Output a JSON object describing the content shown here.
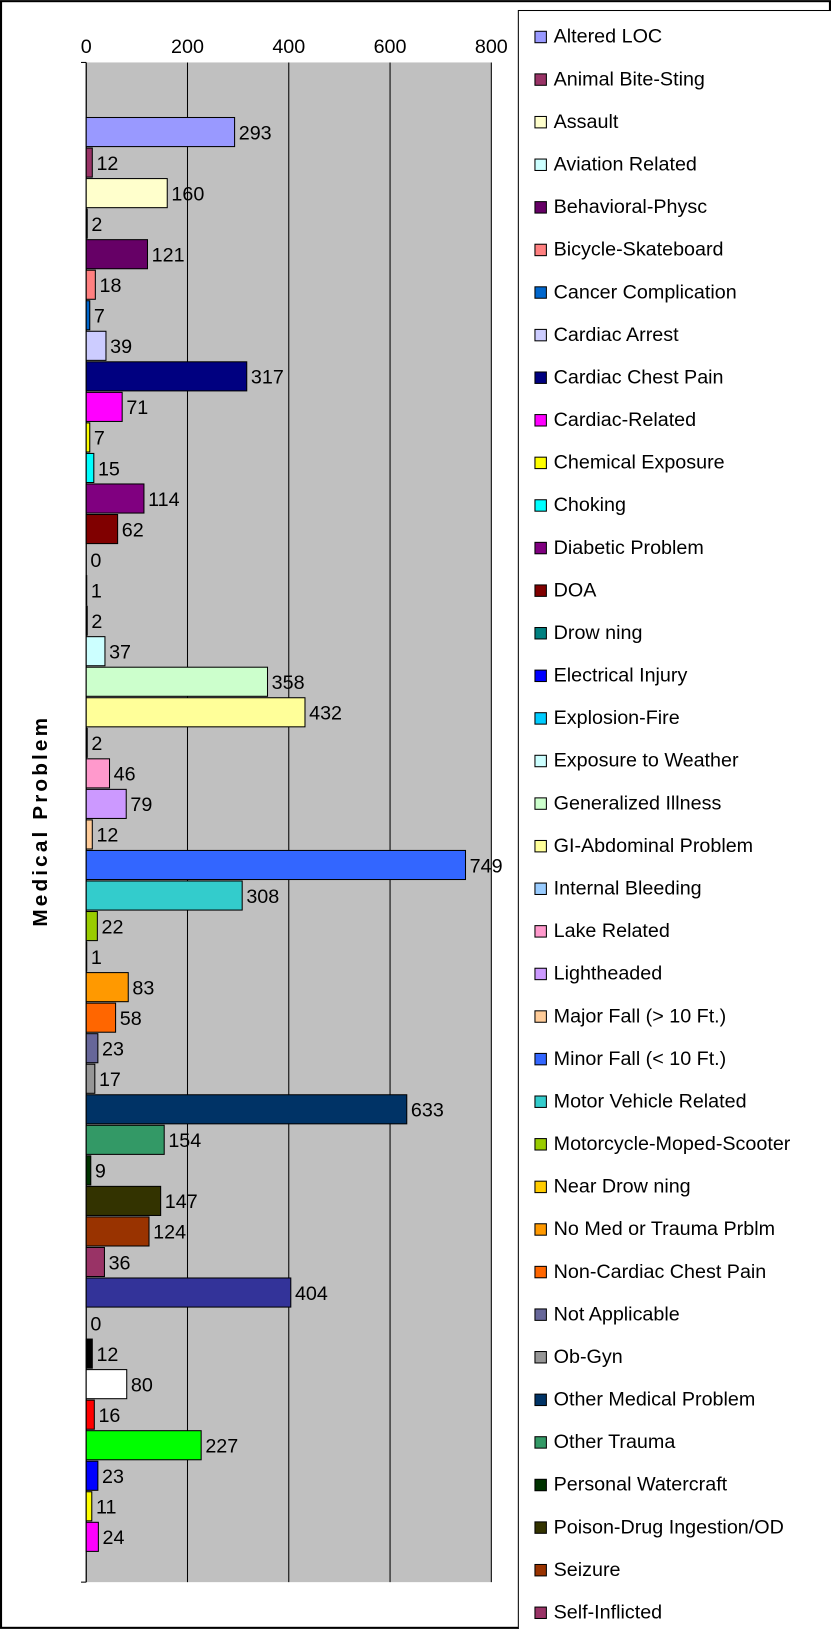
{
  "chart_data": {
    "type": "barh",
    "y_label": "Medical Problem",
    "categories": [
      "Altered LOC",
      "Animal Bite-Sting",
      "Assault",
      "Aviation Related",
      "Behavioral-Physc",
      "Bicycle-Skateboard",
      "Cancer Complication",
      "Cardiac Arrest",
      "Cardiac Chest Pain",
      "Cardiac-Related",
      "Chemical Exposure",
      "Choking",
      "Diabetic Problem",
      "DOA",
      "Drow ning",
      "Electrical Injury",
      "Explosion-Fire",
      "Exposure to Weather",
      "Generalized Illness",
      "GI-Abdominal Problem",
      "Internal Bleeding",
      "Lake Related",
      "Lightheaded",
      "Major Fall (> 10 Ft.)",
      "Minor Fall (< 10 Ft.)",
      "Motor Vehicle Related",
      "Motorcycle-Moped-Scooter",
      "Near Drow ning",
      "No Med or Trauma Prblm",
      "Non-Cardiac Chest Pain",
      "Not Applicable",
      "Ob-Gyn",
      "Other Medical Problem",
      "Other Trauma",
      "Personal Watercraft",
      "Poison-Drug Ingestion/OD",
      "Seizure",
      "Self-Inflicted",
      null,
      null,
      null,
      null,
      null,
      null,
      null,
      null,
      null
    ],
    "values": [
      293,
      12,
      160,
      2,
      121,
      18,
      7,
      39,
      317,
      71,
      7,
      15,
      114,
      62,
      0,
      1,
      2,
      37,
      358,
      432,
      2,
      46,
      79,
      12,
      749,
      308,
      22,
      1,
      83,
      58,
      23,
      17,
      633,
      154,
      9,
      147,
      124,
      36,
      404,
      0,
      12,
      80,
      16,
      227,
      23,
      11,
      24
    ],
    "colors": [
      "#9999ff",
      "#993366",
      "#ffffcc",
      "#ccffff",
      "#660066",
      "#ff8080",
      "#0066cc",
      "#ccccff",
      "#000080",
      "#ff00ff",
      "#ffff00",
      "#00ffff",
      "#800080",
      "#800000",
      "#008080",
      "#0000ff",
      "#00ccff",
      "#ccffff",
      "#ccffcc",
      "#ffff99",
      "#99ccff",
      "#ff99cc",
      "#cc99ff",
      "#ffcc99",
      "#3366ff",
      "#33cccc",
      "#99cc00",
      "#ffcc00",
      "#ff9900",
      "#ff6600",
      "#666699",
      "#969696",
      "#003366",
      "#339966",
      "#003300",
      "#333300",
      "#993300",
      "#993366",
      "#333399",
      "#333333",
      "#000000",
      "#ffffff",
      "#ff0000",
      "#00ff00",
      "#0000ff",
      "#ffff00",
      "#ff00ff"
    ],
    "xlim": [
      0,
      800
    ],
    "xticks": [
      0,
      200,
      400,
      600,
      800
    ],
    "grid": true,
    "legend": "right"
  }
}
